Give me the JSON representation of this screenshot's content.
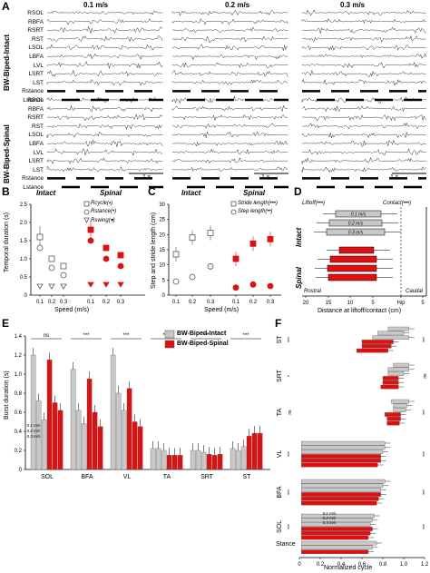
{
  "panelA": {
    "letter": "A",
    "speeds": [
      "0.1 m/s",
      "0.2 m/s",
      "0.3 m/s"
    ],
    "group_intact": "BW-Biped-Intact",
    "group_spinal": "BW-Biped-Spinal",
    "channels_intact": [
      "RSOL",
      "RBFA",
      "RSRT",
      "RST",
      "LSOL",
      "LBFA",
      "LVL",
      "LSRT",
      "LST",
      "Rstance",
      "Lstance"
    ],
    "channels_spinal": [
      "RSOL",
      "RBFA",
      "RSRT",
      "RST",
      "LSOL",
      "LBFA",
      "LVL",
      "LSRT",
      "LST",
      "Rstance",
      "Lstance"
    ],
    "scalebar": "1 s"
  },
  "panelB": {
    "letter": "B",
    "title_intact": "Intact",
    "title_spinal": "Spinal",
    "ylabel": "Temporal duration (s)",
    "xlabel": "Speed (m/s)",
    "yticks": [
      "0",
      "0.5",
      "1.0",
      "1.5",
      "2.0",
      "2.5"
    ],
    "xticks": [
      "0.1",
      "0.2",
      "0.3",
      "0.1",
      "0.2",
      "0.3"
    ],
    "legend": [
      "Rcycle(▪)",
      "Rstance(•)",
      "Rswing(▾)"
    ]
  },
  "panelC": {
    "letter": "C",
    "title_intact": "Intact",
    "title_spinal": "Spinal",
    "ylabel": "Step and stride length (cm)",
    "xlabel": "Speed (m/s)",
    "yticks": [
      "0",
      "5",
      "10",
      "15",
      "20",
      "25",
      "30"
    ],
    "xticks": [
      "0.1",
      "0.2",
      "0.3",
      "0.1",
      "0.2",
      "0.3"
    ],
    "legend": [
      "Stride length(•••)",
      "Step length(••)"
    ]
  },
  "panelD": {
    "letter": "D",
    "liftoff": "Liftoff(•••)",
    "contact": "Contact(•••)",
    "intact": "Intact",
    "spinal": "Spinal",
    "bar_labels": [
      "0.1 m/s",
      "0.2 m/s",
      "0.3 m/s"
    ],
    "rostral": "Rostral",
    "caudal": "Caudal",
    "xticks": [
      "20",
      "15",
      "10",
      "5",
      "Hip",
      "5"
    ],
    "xlabel": "Distance at liftoff/contact (cm)"
  },
  "panelE": {
    "letter": "E",
    "ylabel": "Burst duration (s)",
    "yticks": [
      "0",
      "0.2",
      "0.4",
      "0.6",
      "0.8",
      "1.0",
      "1.2",
      "1.4"
    ],
    "categories": [
      "SOL",
      "BFA",
      "VL",
      "TA",
      "SRT",
      "ST"
    ],
    "legend_intact": "BW-Biped-Intact",
    "legend_spinal": "BW-Biped-Spinal",
    "sig": [
      "ns",
      "***",
      "***",
      "***",
      "***",
      "***"
    ],
    "speed_labels": [
      "0.1 m/s",
      "0.2 m/s",
      "0.3 m/s"
    ],
    "colors": {
      "intact": "#c8c8c8",
      "spinal": "#e01010"
    }
  },
  "panelF": {
    "letter": "F",
    "muscles": [
      "ST",
      "SRT",
      "TA",
      "VL",
      "BFA",
      "SOL",
      "Stance"
    ],
    "left_sig": [
      "***",
      "*",
      "ns",
      "***",
      "***",
      "***"
    ],
    "right_sig": [
      "***",
      "ns",
      "***",
      "***",
      "***",
      "***"
    ],
    "xticks": [
      "0",
      "0.2",
      "0.4",
      "0.6",
      "0.8",
      "1.0",
      "1.2"
    ],
    "xlabel": "Normalized cycle",
    "speed_labels": [
      "0.1 m/s",
      "0.2 m/s",
      "0.3 m/s"
    ]
  },
  "chart_data": [
    {
      "type": "scatter",
      "title": "Intact / Spinal",
      "ylabel": "Temporal duration (s)",
      "xlabel": "Speed (m/s)",
      "ylim": [
        0,
        2.5
      ],
      "categories": [
        "0.1",
        "0.2",
        "0.3",
        "0.1",
        "0.2",
        "0.3"
      ],
      "series": [
        {
          "name": "Rcycle",
          "values": [
            1.6,
            1.0,
            0.8,
            1.8,
            1.3,
            1.1
          ]
        },
        {
          "name": "Rstance",
          "values": [
            1.3,
            0.75,
            0.55,
            1.5,
            1.0,
            0.8
          ]
        },
        {
          "name": "Rswing",
          "values": [
            0.25,
            0.25,
            0.25,
            0.3,
            0.3,
            0.3
          ]
        }
      ]
    },
    {
      "type": "scatter",
      "ylabel": "Step and stride length (cm)",
      "xlabel": "Speed (m/s)",
      "ylim": [
        0,
        30
      ],
      "categories": [
        "0.1",
        "0.2",
        "0.3",
        "0.1",
        "0.2",
        "0.3"
      ],
      "series": [
        {
          "name": "Stride length",
          "values": [
            13.5,
            19,
            20.5,
            12,
            17,
            18.5
          ]
        },
        {
          "name": "Step length",
          "values": [
            4.5,
            6,
            9.5,
            2.5,
            3.5,
            3
          ]
        }
      ]
    },
    {
      "type": "bar",
      "ylabel": "Burst duration (s)",
      "ylim": [
        0,
        1.4
      ],
      "categories": [
        "SOL",
        "BFA",
        "VL",
        "TA",
        "SRT",
        "ST"
      ],
      "series": [
        {
          "name": "BW-Biped-Intact 0.1",
          "values": [
            1.2,
            1.05,
            1.2,
            0.22,
            0.2,
            0.22
          ]
        },
        {
          "name": "BW-Biped-Intact 0.2",
          "values": [
            0.72,
            0.62,
            0.8,
            0.22,
            0.2,
            0.2
          ]
        },
        {
          "name": "BW-Biped-Intact 0.3",
          "values": [
            0.52,
            0.48,
            0.62,
            0.2,
            0.18,
            0.24
          ]
        },
        {
          "name": "BW-Biped-Spinal 0.1",
          "values": [
            1.15,
            0.95,
            0.85,
            0.15,
            0.16,
            0.35
          ]
        },
        {
          "name": "BW-Biped-Spinal 0.2",
          "values": [
            0.7,
            0.6,
            0.5,
            0.15,
            0.15,
            0.38
          ]
        },
        {
          "name": "BW-Biped-Spinal 0.3",
          "values": [
            0.62,
            0.45,
            0.45,
            0.15,
            0.16,
            0.38
          ]
        }
      ]
    }
  ]
}
